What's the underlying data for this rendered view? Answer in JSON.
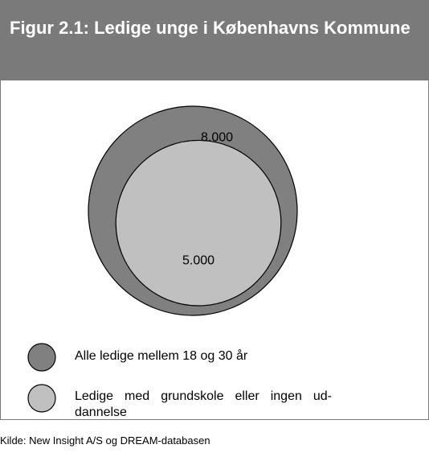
{
  "chart_data": {
    "type": "circles",
    "title": "Figur 2.1: Ledige unge i Københavns Kommune",
    "series": [
      {
        "name": "Alle ledige mellem 18 og 30 år",
        "color": "#808080",
        "values": [
          8000
        ],
        "value_labels": [
          "8.000"
        ]
      },
      {
        "name": "Ledige med grundskole eller ingen ud­dannelse",
        "color": "#c0c0c0",
        "values": [
          5000
        ],
        "value_labels": [
          "5.000"
        ]
      }
    ],
    "source": "Kilde: New Insight A/S og DREAM-databasen"
  }
}
